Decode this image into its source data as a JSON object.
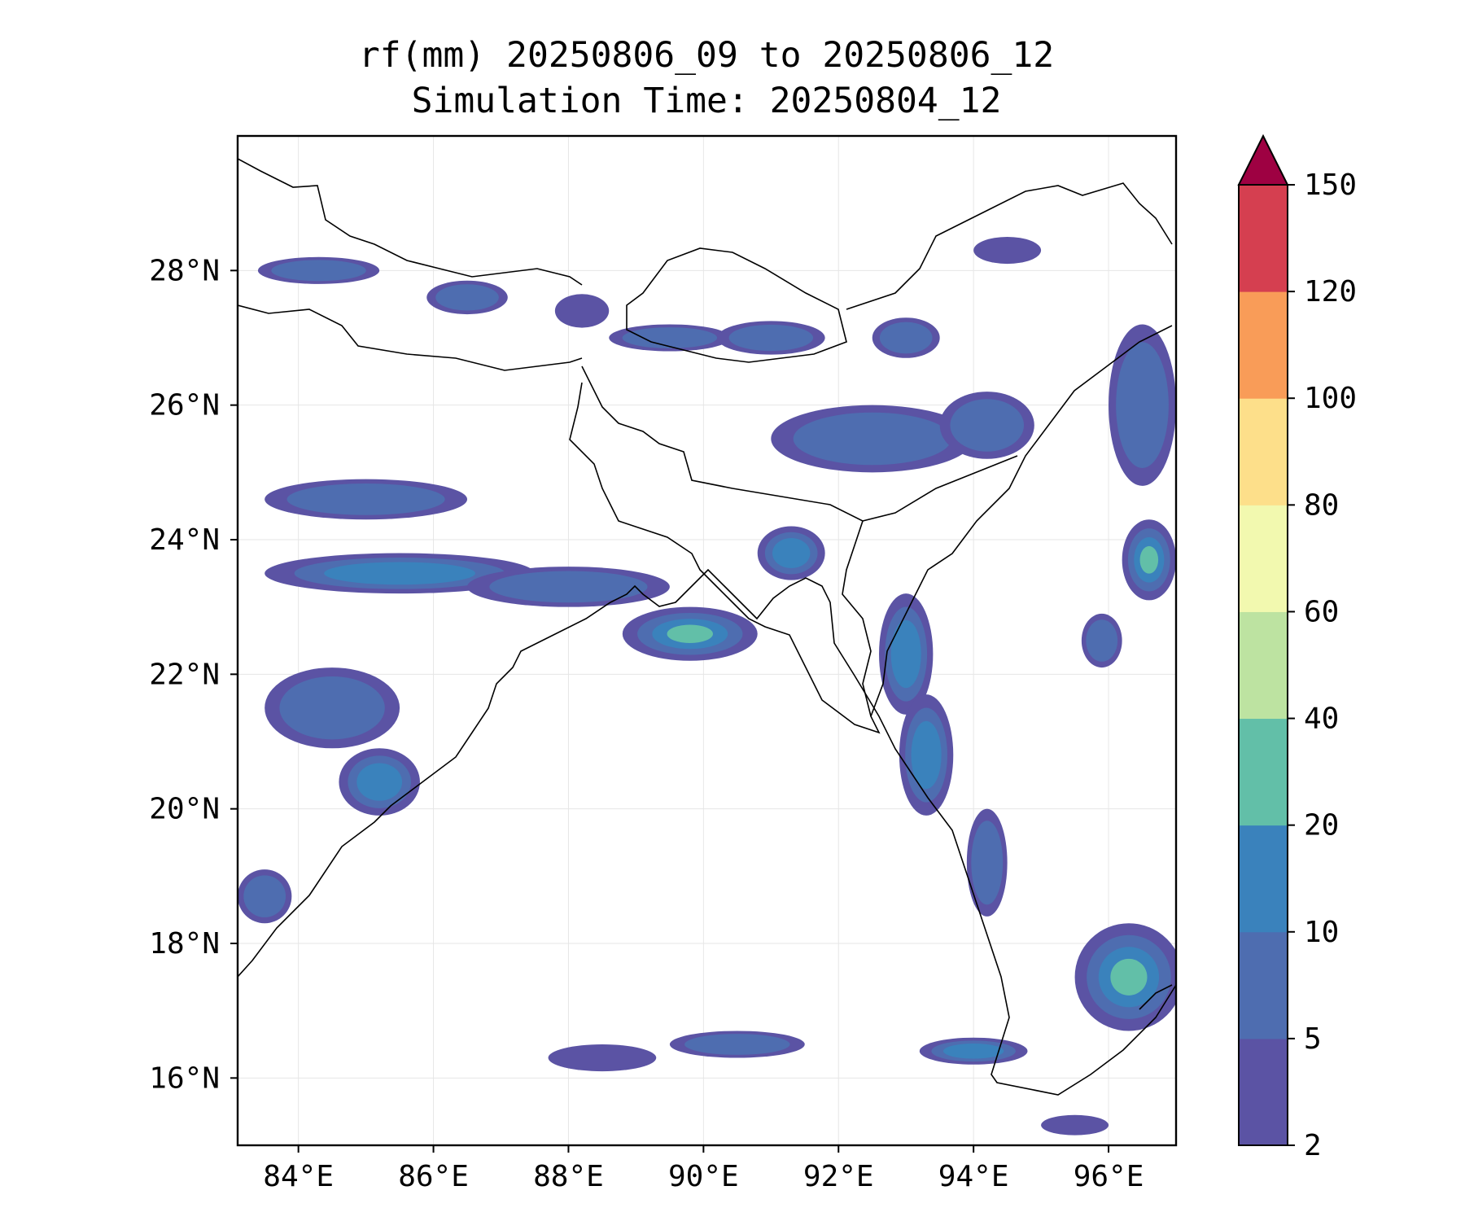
{
  "title": {
    "line1": "rf(mm) 20250806_09 to 20250806_12",
    "line2": "Simulation Time: 20250804_12"
  },
  "map": {
    "lon_range": [
      83.1,
      97.0
    ],
    "lat_range": [
      15.0,
      30.0
    ],
    "x_ticks": [
      {
        "value": 84,
        "label": "84°E"
      },
      {
        "value": 86,
        "label": "86°E"
      },
      {
        "value": 88,
        "label": "88°E"
      },
      {
        "value": 90,
        "label": "90°E"
      },
      {
        "value": 92,
        "label": "92°E"
      },
      {
        "value": 94,
        "label": "94°E"
      },
      {
        "value": 96,
        "label": "96°E"
      }
    ],
    "y_ticks": [
      {
        "value": 16,
        "label": "16°N"
      },
      {
        "value": 18,
        "label": "18°N"
      },
      {
        "value": 20,
        "label": "20°N"
      },
      {
        "value": 22,
        "label": "22°N"
      },
      {
        "value": 24,
        "label": "24°N"
      },
      {
        "value": 26,
        "label": "26°N"
      },
      {
        "value": 28,
        "label": "28°N"
      }
    ],
    "grid": true,
    "rain_cells": [
      {
        "lon": 84.3,
        "lat": 28.0,
        "rx": 0.9,
        "ry": 0.2,
        "level": 1
      },
      {
        "lon": 86.5,
        "lat": 27.6,
        "rx": 0.6,
        "ry": 0.25,
        "level": 1
      },
      {
        "lon": 88.2,
        "lat": 27.4,
        "rx": 0.4,
        "ry": 0.25,
        "level": 0
      },
      {
        "lon": 89.5,
        "lat": 27.0,
        "rx": 0.9,
        "ry": 0.2,
        "level": 1
      },
      {
        "lon": 91.0,
        "lat": 27.0,
        "rx": 0.8,
        "ry": 0.25,
        "level": 1
      },
      {
        "lon": 93.0,
        "lat": 27.0,
        "rx": 0.5,
        "ry": 0.3,
        "level": 1
      },
      {
        "lon": 94.5,
        "lat": 28.3,
        "rx": 0.5,
        "ry": 0.2,
        "level": 0
      },
      {
        "lon": 96.5,
        "lat": 26.0,
        "rx": 0.5,
        "ry": 1.2,
        "level": 1
      },
      {
        "lon": 92.5,
        "lat": 25.5,
        "rx": 1.5,
        "ry": 0.5,
        "level": 1
      },
      {
        "lon": 94.2,
        "lat": 25.7,
        "rx": 0.7,
        "ry": 0.5,
        "level": 1
      },
      {
        "lon": 85.0,
        "lat": 24.6,
        "rx": 1.5,
        "ry": 0.3,
        "level": 1
      },
      {
        "lon": 85.5,
        "lat": 23.5,
        "rx": 2.0,
        "ry": 0.3,
        "level": 2
      },
      {
        "lon": 88.0,
        "lat": 23.3,
        "rx": 1.5,
        "ry": 0.3,
        "level": 1
      },
      {
        "lon": 89.8,
        "lat": 22.6,
        "rx": 1.0,
        "ry": 0.4,
        "level": 3
      },
      {
        "lon": 91.3,
        "lat": 23.8,
        "rx": 0.5,
        "ry": 0.4,
        "level": 2
      },
      {
        "lon": 93.0,
        "lat": 22.3,
        "rx": 0.4,
        "ry": 0.9,
        "level": 2
      },
      {
        "lon": 93.3,
        "lat": 20.8,
        "rx": 0.4,
        "ry": 0.9,
        "level": 2
      },
      {
        "lon": 94.2,
        "lat": 19.2,
        "rx": 0.3,
        "ry": 0.8,
        "level": 1
      },
      {
        "lon": 84.5,
        "lat": 21.5,
        "rx": 1.0,
        "ry": 0.6,
        "level": 1
      },
      {
        "lon": 85.2,
        "lat": 20.4,
        "rx": 0.6,
        "ry": 0.5,
        "level": 2
      },
      {
        "lon": 83.5,
        "lat": 18.7,
        "rx": 0.4,
        "ry": 0.4,
        "level": 1
      },
      {
        "lon": 96.3,
        "lat": 17.5,
        "rx": 0.8,
        "ry": 0.8,
        "level": 3
      },
      {
        "lon": 96.6,
        "lat": 23.7,
        "rx": 0.4,
        "ry": 0.6,
        "level": 3
      },
      {
        "lon": 95.9,
        "lat": 22.5,
        "rx": 0.3,
        "ry": 0.4,
        "level": 1
      },
      {
        "lon": 90.5,
        "lat": 16.5,
        "rx": 1.0,
        "ry": 0.2,
        "level": 1
      },
      {
        "lon": 88.5,
        "lat": 16.3,
        "rx": 0.8,
        "ry": 0.2,
        "level": 0
      },
      {
        "lon": 94.0,
        "lat": 16.4,
        "rx": 0.8,
        "ry": 0.2,
        "level": 2
      },
      {
        "lon": 95.5,
        "lat": 15.3,
        "rx": 0.5,
        "ry": 0.15,
        "level": 0
      }
    ]
  },
  "colorbar": {
    "boundaries": [
      2,
      5,
      10,
      20,
      40,
      60,
      80,
      100,
      120,
      150
    ],
    "tick_labels": [
      "2",
      "5",
      "10",
      "20",
      "40",
      "60",
      "80",
      "100",
      "120",
      "150"
    ],
    "colors": [
      "#5b53a4",
      "#4e6db0",
      "#3a82bc",
      "#62bfa8",
      "#bde3a1",
      "#f2f9af",
      "#fddf8a",
      "#f99c58",
      "#d53f50"
    ],
    "extend_color": "#9e0142"
  }
}
